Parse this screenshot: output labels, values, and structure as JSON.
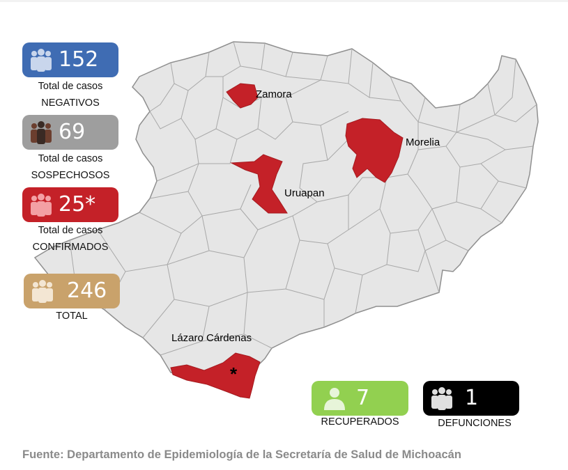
{
  "stats": {
    "negativos": {
      "value": "152",
      "line1": "Total de casos",
      "line2": "NEGATIVOS",
      "color": "#3f6cb3"
    },
    "sospechosos": {
      "value": "69",
      "line1": "Total de casos",
      "line2": "SOSPECHOSOS",
      "color": "#9e9e9e"
    },
    "confirmados": {
      "value": "25*",
      "line1": "Total de casos",
      "line2": "CONFIRMADOS",
      "color": "#c42128"
    },
    "total": {
      "value": "246",
      "line1": "TOTAL",
      "color": "#c9a26b"
    },
    "recuperados": {
      "value": "7",
      "line1": "RECUPERADOS",
      "color": "#92d050"
    },
    "defunciones": {
      "value": "1",
      "line1": "DEFUNCIONES",
      "color": "#000000"
    }
  },
  "map": {
    "labels": {
      "zamora": "Zamora",
      "morelia": "Morelia",
      "uruapan": "Uruapan",
      "lazaro_cardenas": "Lázaro Cárdenas",
      "asterisk": "*"
    },
    "fill_colors": {
      "base": "#e6e6e6",
      "border": "#9a9a9a",
      "highlight": "#c42128"
    }
  },
  "footer": {
    "source": "Fuente: Departamento de Epidemiología de la Secretaría de Salud de Michoacán"
  },
  "icons": {
    "group": "people-group-icon",
    "single": "person-icon"
  }
}
